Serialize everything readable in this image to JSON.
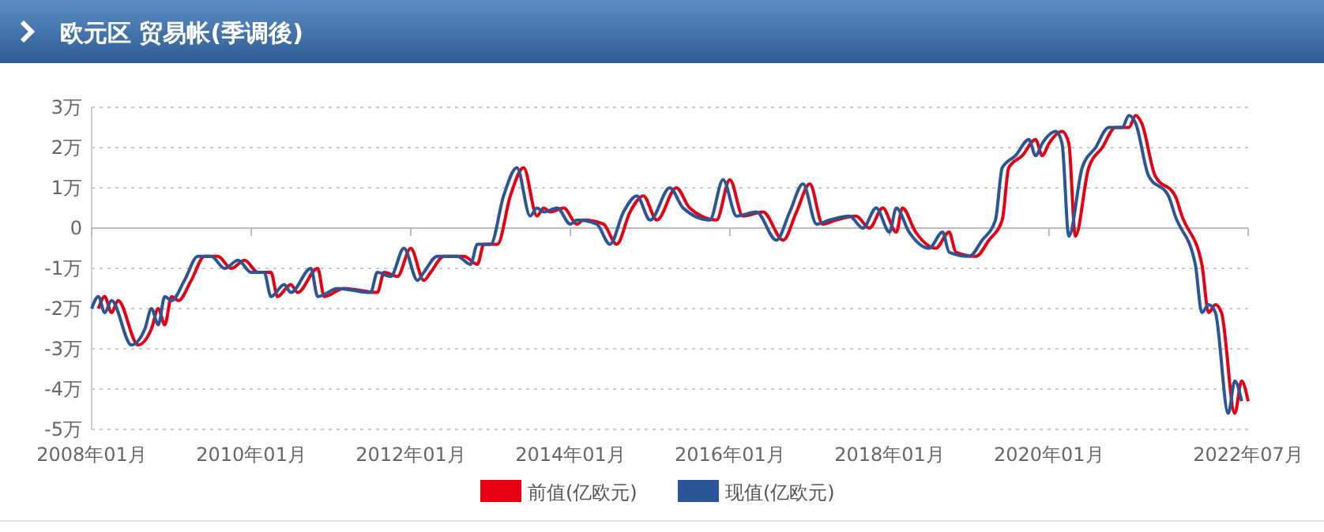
{
  "chart_data": {
    "type": "line",
    "title": "欧元区 贸易帐(季调後)",
    "legend": "bottom",
    "grid": "y",
    "marker": "none",
    "line_style": "solid",
    "xlim": [
      "2008-01",
      "2022-07"
    ],
    "xticks": [
      {
        "value": "2008-01",
        "label": "2008年01月"
      },
      {
        "value": "2010-01",
        "label": "2010年01月"
      },
      {
        "value": "2012-01",
        "label": "2012年01月"
      },
      {
        "value": "2014-01",
        "label": "2014年01月"
      },
      {
        "value": "2016-01",
        "label": "2016年01月"
      },
      {
        "value": "2018-01",
        "label": "2018年01月"
      },
      {
        "value": "2020-01",
        "label": "2020年01月"
      },
      {
        "value": "2022-07",
        "label": "2022年07月"
      }
    ],
    "ylim": [
      -5,
      3
    ],
    "yticks": [
      {
        "value": -5,
        "label": "-5万"
      },
      {
        "value": -4,
        "label": "-4万"
      },
      {
        "value": -3,
        "label": "-3万"
      },
      {
        "value": -2,
        "label": "-2万"
      },
      {
        "value": -1,
        "label": "-1万"
      },
      0,
      {
        "value": 1,
        "label": "1万"
      },
      {
        "value": 2,
        "label": "2万"
      },
      {
        "value": 3,
        "label": "3万"
      }
    ],
    "series": [
      {
        "name": "前值(亿欧元)",
        "color": "#e60012",
        "x": [
          "2008-02",
          "2008-03",
          "2008-04",
          "2008-05",
          "2008-08",
          "2008-10",
          "2008-11",
          "2008-12",
          "2009-01",
          "2009-02",
          "2009-04",
          "2009-06",
          "2009-08",
          "2009-10",
          "2009-12",
          "2010-02",
          "2010-04",
          "2010-05",
          "2010-07",
          "2010-08",
          "2010-11",
          "2010-12",
          "2011-03",
          "2011-08",
          "2011-09",
          "2011-11",
          "2012-01",
          "2012-03",
          "2012-04",
          "2012-06",
          "2012-09",
          "2012-11",
          "2012-12",
          "2013-02",
          "2013-04",
          "2013-06",
          "2013-08",
          "2013-09",
          "2013-10",
          "2013-12",
          "2014-02",
          "2014-03",
          "2014-06",
          "2014-08",
          "2014-10",
          "2014-12",
          "2015-02",
          "2015-05",
          "2015-07",
          "2015-11",
          "2016-01",
          "2016-03",
          "2016-06",
          "2016-09",
          "2016-11",
          "2017-01",
          "2017-03",
          "2017-05",
          "2017-08",
          "2017-10",
          "2017-12",
          "2018-02",
          "2018-03",
          "2018-05",
          "2018-08",
          "2018-10",
          "2018-11",
          "2019-02",
          "2019-04",
          "2019-06",
          "2019-07",
          "2019-09",
          "2019-11",
          "2019-12",
          "2020-01",
          "2020-03",
          "2020-04",
          "2020-05",
          "2020-07",
          "2020-09",
          "2020-11",
          "2021-01",
          "2021-02",
          "2021-03",
          "2021-05",
          "2021-08",
          "2021-09",
          "2021-12",
          "2022-01",
          "2022-02",
          "2022-03",
          "2022-05",
          "2022-06",
          "2022-07"
        ],
        "values": [
          -2.0,
          -1.7,
          -2.1,
          -1.8,
          -2.9,
          -2.5,
          -2.0,
          -2.4,
          -1.7,
          -1.8,
          -1.3,
          -0.7,
          -0.7,
          -1.0,
          -0.8,
          -1.1,
          -1.1,
          -1.7,
          -1.4,
          -1.6,
          -1.0,
          -1.7,
          -1.5,
          -1.6,
          -1.1,
          -1.2,
          -0.5,
          -1.3,
          -1.1,
          -0.7,
          -0.7,
          -0.9,
          -0.4,
          -0.4,
          0.8,
          1.5,
          0.3,
          0.5,
          0.4,
          0.5,
          0.1,
          0.2,
          0.1,
          -0.4,
          0.4,
          0.8,
          0.2,
          1.0,
          0.5,
          0.2,
          1.2,
          0.3,
          0.4,
          -0.3,
          0.4,
          1.1,
          0.1,
          0.2,
          0.3,
          0,
          0.5,
          -0.1,
          0.5,
          -0.1,
          -0.5,
          -0.1,
          -0.6,
          -0.7,
          -0.3,
          0.2,
          1.5,
          1.8,
          2.2,
          1.8,
          2.1,
          2.4,
          2.1,
          -0.2,
          1.5,
          2.0,
          2.5,
          2.5,
          2.8,
          2.6,
          1.3,
          0.8,
          0.3,
          -0.9,
          -2.1,
          -1.9,
          -2.1,
          -4.6,
          -3.8,
          -4.3
        ]
      },
      {
        "name": "现值(亿欧元)",
        "color": "#2c5597",
        "x": [
          "2008-01",
          "2008-02",
          "2008-03",
          "2008-04",
          "2008-07",
          "2008-09",
          "2008-10",
          "2008-11",
          "2008-12",
          "2009-01",
          "2009-03",
          "2009-05",
          "2009-07",
          "2009-09",
          "2009-11",
          "2010-01",
          "2010-03",
          "2010-04",
          "2010-06",
          "2010-07",
          "2010-10",
          "2010-11",
          "2011-02",
          "2011-07",
          "2011-08",
          "2011-10",
          "2011-12",
          "2012-02",
          "2012-03",
          "2012-05",
          "2012-08",
          "2012-10",
          "2012-11",
          "2013-01",
          "2013-03",
          "2013-05",
          "2013-07",
          "2013-08",
          "2013-09",
          "2013-11",
          "2014-01",
          "2014-02",
          "2014-05",
          "2014-07",
          "2014-09",
          "2014-11",
          "2015-01",
          "2015-04",
          "2015-06",
          "2015-10",
          "2015-12",
          "2016-02",
          "2016-05",
          "2016-08",
          "2016-10",
          "2016-12",
          "2017-02",
          "2017-04",
          "2017-07",
          "2017-09",
          "2017-11",
          "2018-01",
          "2018-02",
          "2018-04",
          "2018-07",
          "2018-09",
          "2018-10",
          "2019-01",
          "2019-03",
          "2019-05",
          "2019-06",
          "2019-08",
          "2019-10",
          "2019-11",
          "2019-12",
          "2020-02",
          "2020-03",
          "2020-04",
          "2020-06",
          "2020-08",
          "2020-10",
          "2020-12",
          "2021-01",
          "2021-02",
          "2021-04",
          "2021-07",
          "2021-08",
          "2021-11",
          "2021-12",
          "2022-01",
          "2022-02",
          "2022-04",
          "2022-05",
          "2022-06"
        ],
        "values": [
          -2.0,
          -1.7,
          -2.1,
          -1.8,
          -2.9,
          -2.5,
          -2.0,
          -2.4,
          -1.7,
          -1.8,
          -1.3,
          -0.7,
          -0.7,
          -1.0,
          -0.8,
          -1.1,
          -1.1,
          -1.7,
          -1.4,
          -1.6,
          -1.0,
          -1.7,
          -1.5,
          -1.6,
          -1.1,
          -1.2,
          -0.5,
          -1.3,
          -1.1,
          -0.7,
          -0.7,
          -0.9,
          -0.4,
          -0.4,
          0.8,
          1.5,
          0.3,
          0.5,
          0.4,
          0.5,
          0.1,
          0.2,
          0.1,
          -0.4,
          0.4,
          0.8,
          0.2,
          1.0,
          0.5,
          0.2,
          1.2,
          0.3,
          0.4,
          -0.3,
          0.4,
          1.1,
          0.1,
          0.2,
          0.3,
          0,
          0.5,
          -0.1,
          0.5,
          -0.1,
          -0.5,
          -0.1,
          -0.6,
          -0.7,
          -0.3,
          0.2,
          1.5,
          1.8,
          2.2,
          1.8,
          2.1,
          2.4,
          2.1,
          -0.2,
          1.5,
          2.0,
          2.5,
          2.5,
          2.8,
          2.6,
          1.3,
          0.8,
          0.3,
          -0.9,
          -2.1,
          -1.9,
          -2.1,
          -4.6,
          -3.8,
          -4.3
        ]
      }
    ]
  }
}
